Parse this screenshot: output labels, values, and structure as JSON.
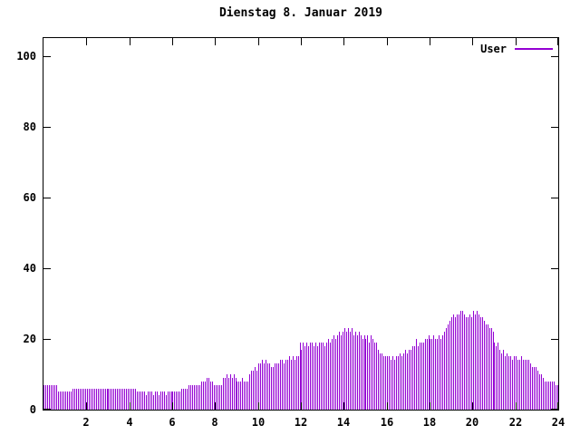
{
  "title": "Dienstag 8. Januar 2019",
  "legend": {
    "label": "User"
  },
  "colors": {
    "series": "#9400d3",
    "axis": "#000000",
    "background": "#ffffff"
  },
  "chart_data": {
    "type": "bar",
    "title": "Dienstag 8. Januar 2019",
    "xlabel": "",
    "ylabel": "",
    "xlim": [
      0,
      24
    ],
    "ylim": [
      0,
      105
    ],
    "x_ticks": [
      2,
      4,
      6,
      8,
      10,
      12,
      14,
      16,
      18,
      20,
      22,
      24
    ],
    "y_ticks": [
      0,
      20,
      40,
      60,
      80,
      100
    ],
    "grid": false,
    "legend_position": "top-right",
    "sample_interval_minutes": 5,
    "series": [
      {
        "name": "User",
        "color": "#9400d3",
        "values": [
          7,
          7,
          7,
          7,
          7,
          7,
          7,
          7,
          5,
          5,
          5,
          5,
          5,
          5,
          5,
          5,
          6,
          6,
          6,
          6,
          6,
          6,
          6,
          6,
          6,
          6,
          6,
          6,
          6,
          6,
          6,
          6,
          6,
          6,
          6,
          6,
          6,
          6,
          6,
          6,
          6,
          6,
          6,
          6,
          6,
          6,
          6,
          6,
          6,
          6,
          6,
          6,
          5,
          5,
          5,
          5,
          5,
          4,
          5,
          5,
          5,
          4,
          5,
          5,
          4,
          5,
          5,
          5,
          4,
          5,
          5,
          5,
          5,
          5,
          5,
          5,
          5,
          6,
          6,
          6,
          6,
          7,
          7,
          7,
          7,
          7,
          7,
          7,
          8,
          8,
          8,
          9,
          9,
          8,
          8,
          7,
          7,
          7,
          7,
          7,
          9,
          9,
          10,
          9,
          10,
          9,
          10,
          9,
          8,
          8,
          8,
          9,
          8,
          8,
          8,
          10,
          11,
          11,
          12,
          11,
          13,
          13,
          14,
          13,
          14,
          13,
          13,
          12,
          12,
          13,
          13,
          13,
          14,
          14,
          13,
          14,
          14,
          15,
          14,
          15,
          14,
          15,
          15,
          19,
          17,
          19,
          18,
          19,
          18,
          19,
          19,
          18,
          19,
          18,
          19,
          19,
          19,
          18,
          19,
          20,
          19,
          20,
          21,
          20,
          21,
          22,
          21,
          22,
          23,
          22,
          23,
          22,
          23,
          21,
          22,
          21,
          22,
          21,
          20,
          21,
          20,
          21,
          19,
          21,
          20,
          19,
          19,
          17,
          16,
          16,
          15,
          15,
          15,
          15,
          14,
          15,
          14,
          15,
          15,
          16,
          15,
          16,
          17,
          16,
          17,
          17,
          18,
          18,
          20,
          18,
          19,
          19,
          19,
          20,
          20,
          21,
          20,
          20,
          21,
          20,
          20,
          21,
          20,
          21,
          22,
          23,
          24,
          25,
          26,
          27,
          26,
          27,
          27,
          28,
          28,
          27,
          26,
          26,
          27,
          26,
          28,
          27,
          28,
          27,
          26,
          26,
          25,
          24,
          24,
          23,
          23,
          22,
          19,
          18,
          19,
          17,
          16,
          17,
          15,
          16,
          15,
          15,
          14,
          15,
          15,
          14,
          14,
          15,
          14,
          14,
          14,
          14,
          13,
          12,
          12,
          12,
          11,
          10,
          10,
          9,
          8,
          8,
          8,
          8,
          8,
          8,
          7,
          7
        ]
      }
    ]
  }
}
